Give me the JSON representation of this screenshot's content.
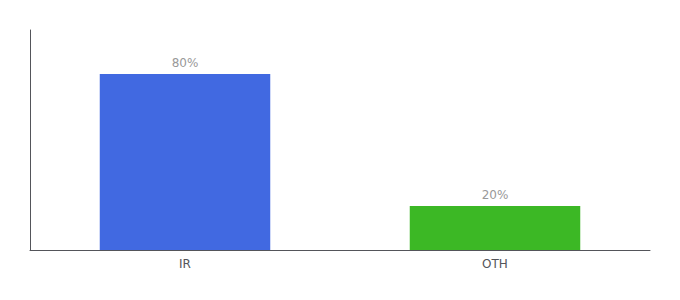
{
  "chart_data": {
    "type": "bar",
    "categories": [
      "IR",
      "OTH"
    ],
    "values": [
      80,
      20
    ],
    "colors": [
      "#4169e1",
      "#3cb825"
    ],
    "value_labels": [
      "80%",
      "20%"
    ],
    "data_labels": true,
    "ylim": [
      0,
      100
    ],
    "tick_labels": "x",
    "grid": false
  }
}
